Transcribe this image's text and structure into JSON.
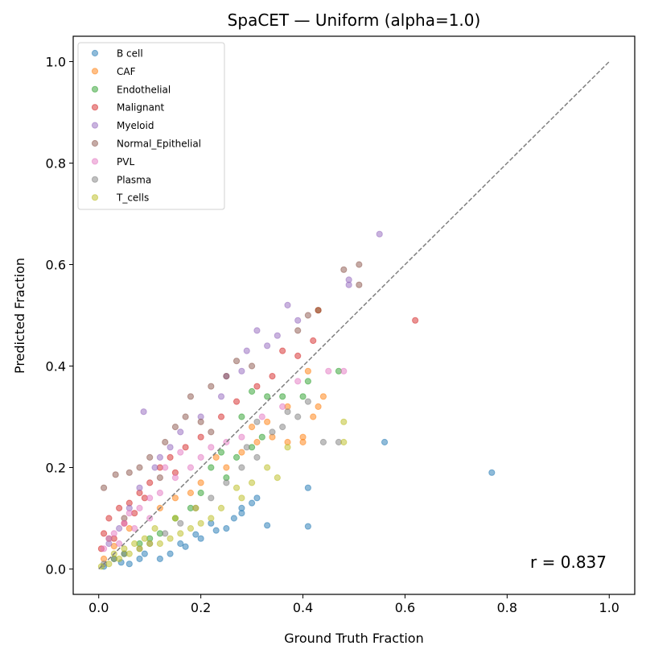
{
  "chart_data": {
    "type": "scatter",
    "title": "SpaCET — Uniform (alpha=1.0)",
    "xlabel": "Ground Truth Fraction",
    "ylabel": "Predicted Fraction",
    "xlim": [
      -0.05,
      1.05
    ],
    "ylim": [
      -0.05,
      1.05
    ],
    "xticks": [
      "0.0",
      "0.2",
      "0.4",
      "0.6",
      "0.8",
      "1.0"
    ],
    "yticks": [
      "0.0",
      "0.2",
      "0.4",
      "0.6",
      "0.8",
      "1.0"
    ],
    "grid": false,
    "legend_position": "top-left",
    "marker_alpha": 0.5,
    "reference_line": {
      "style": "dashed",
      "color": "#808080",
      "from": [
        0,
        0
      ],
      "to": [
        1,
        1
      ]
    },
    "annotation": "r = 0.837",
    "series": [
      {
        "name": "B cell",
        "color": "#1f77b4",
        "points": [
          [
            0.77,
            0.19
          ],
          [
            0.41,
            0.16
          ],
          [
            0.41,
            0.084
          ],
          [
            0.33,
            0.086
          ],
          [
            0.31,
            0.14
          ],
          [
            0.23,
            0.076
          ],
          [
            0.12,
            0.02
          ],
          [
            0.17,
            0.044
          ],
          [
            0.28,
            0.12
          ],
          [
            0.56,
            0.25
          ],
          [
            0.265,
            0.1
          ],
          [
            0.2,
            0.06
          ],
          [
            0.09,
            0.03
          ],
          [
            0.044,
            0.013
          ],
          [
            0.28,
            0.11
          ],
          [
            0.22,
            0.09
          ],
          [
            0.19,
            0.068
          ],
          [
            0.14,
            0.03
          ],
          [
            0.08,
            0.02
          ],
          [
            0.01,
            0.005
          ],
          [
            0.25,
            0.08
          ],
          [
            0.16,
            0.05
          ],
          [
            0.06,
            0.01
          ],
          [
            0.3,
            0.13
          ]
        ]
      },
      {
        "name": "CAF",
        "color": "#ff7f0e",
        "points": [
          [
            0.44,
            0.34
          ],
          [
            0.43,
            0.32
          ],
          [
            0.42,
            0.3
          ],
          [
            0.4,
            0.26
          ],
          [
            0.4,
            0.25
          ],
          [
            0.37,
            0.25
          ],
          [
            0.34,
            0.26
          ],
          [
            0.31,
            0.25
          ],
          [
            0.33,
            0.29
          ],
          [
            0.41,
            0.39
          ],
          [
            0.37,
            0.32
          ],
          [
            0.28,
            0.23
          ],
          [
            0.25,
            0.2
          ],
          [
            0.2,
            0.17
          ],
          [
            0.15,
            0.14
          ],
          [
            0.12,
            0.12
          ],
          [
            0.06,
            0.08
          ],
          [
            0.03,
            0.045
          ],
          [
            0.01,
            0.02
          ],
          [
            0.3,
            0.28
          ],
          [
            0.23,
            0.22
          ],
          [
            0.18,
            0.15
          ]
        ]
      },
      {
        "name": "Endothelial",
        "color": "#2ca02c",
        "points": [
          [
            0.47,
            0.39
          ],
          [
            0.41,
            0.37
          ],
          [
            0.43,
            0.51
          ],
          [
            0.4,
            0.34
          ],
          [
            0.36,
            0.34
          ],
          [
            0.33,
            0.34
          ],
          [
            0.3,
            0.35
          ],
          [
            0.28,
            0.3
          ],
          [
            0.32,
            0.26
          ],
          [
            0.27,
            0.22
          ],
          [
            0.25,
            0.18
          ],
          [
            0.22,
            0.2
          ],
          [
            0.2,
            0.15
          ],
          [
            0.18,
            0.12
          ],
          [
            0.15,
            0.1
          ],
          [
            0.12,
            0.07
          ],
          [
            0.1,
            0.06
          ],
          [
            0.08,
            0.05
          ],
          [
            0.05,
            0.03
          ],
          [
            0.03,
            0.02
          ],
          [
            0.3,
            0.24
          ],
          [
            0.24,
            0.23
          ]
        ]
      },
      {
        "name": "Malignant",
        "color": "#d62728",
        "points": [
          [
            0.62,
            0.49
          ],
          [
            0.43,
            0.51
          ],
          [
            0.42,
            0.45
          ],
          [
            0.39,
            0.42
          ],
          [
            0.36,
            0.43
          ],
          [
            0.34,
            0.38
          ],
          [
            0.31,
            0.36
          ],
          [
            0.27,
            0.33
          ],
          [
            0.24,
            0.3
          ],
          [
            0.2,
            0.26
          ],
          [
            0.17,
            0.24
          ],
          [
            0.14,
            0.22
          ],
          [
            0.12,
            0.2
          ],
          [
            0.1,
            0.17
          ],
          [
            0.08,
            0.15
          ],
          [
            0.06,
            0.13
          ],
          [
            0.04,
            0.12
          ],
          [
            0.02,
            0.1
          ],
          [
            0.01,
            0.07
          ],
          [
            0.005,
            0.04
          ],
          [
            0.03,
            0.06
          ],
          [
            0.05,
            0.09
          ],
          [
            0.07,
            0.11
          ],
          [
            0.09,
            0.14
          ],
          [
            0.15,
            0.19
          ]
        ]
      },
      {
        "name": "Myeloid",
        "color": "#9467bd",
        "points": [
          [
            0.55,
            0.66
          ],
          [
            0.49,
            0.57
          ],
          [
            0.49,
            0.56
          ],
          [
            0.37,
            0.52
          ],
          [
            0.39,
            0.49
          ],
          [
            0.31,
            0.47
          ],
          [
            0.35,
            0.46
          ],
          [
            0.33,
            0.44
          ],
          [
            0.29,
            0.43
          ],
          [
            0.25,
            0.38
          ],
          [
            0.088,
            0.31
          ],
          [
            0.24,
            0.34
          ],
          [
            0.2,
            0.3
          ],
          [
            0.16,
            0.27
          ],
          [
            0.14,
            0.24
          ],
          [
            0.11,
            0.2
          ],
          [
            0.08,
            0.16
          ],
          [
            0.06,
            0.12
          ],
          [
            0.04,
            0.08
          ],
          [
            0.02,
            0.05
          ],
          [
            0.12,
            0.22
          ],
          [
            0.28,
            0.39
          ]
        ]
      },
      {
        "name": "Normal_Epithelial",
        "color": "#8c564b",
        "points": [
          [
            0.51,
            0.6
          ],
          [
            0.48,
            0.59
          ],
          [
            0.51,
            0.56
          ],
          [
            0.41,
            0.5
          ],
          [
            0.39,
            0.47
          ],
          [
            0.27,
            0.41
          ],
          [
            0.25,
            0.38
          ],
          [
            0.3,
            0.4
          ],
          [
            0.22,
            0.36
          ],
          [
            0.18,
            0.34
          ],
          [
            0.17,
            0.3
          ],
          [
            0.15,
            0.28
          ],
          [
            0.13,
            0.25
          ],
          [
            0.1,
            0.22
          ],
          [
            0.06,
            0.19
          ],
          [
            0.033,
            0.186
          ],
          [
            0.01,
            0.16
          ],
          [
            0.08,
            0.2
          ],
          [
            0.12,
            0.18
          ],
          [
            0.2,
            0.29
          ],
          [
            0.22,
            0.27
          ],
          [
            0.05,
            0.1
          ],
          [
            0.02,
            0.06
          ]
        ]
      },
      {
        "name": "PVL",
        "color": "#e377c2",
        "points": [
          [
            0.48,
            0.39
          ],
          [
            0.45,
            0.39
          ],
          [
            0.39,
            0.37
          ],
          [
            0.36,
            0.32
          ],
          [
            0.32,
            0.3
          ],
          [
            0.28,
            0.26
          ],
          [
            0.25,
            0.25
          ],
          [
            0.22,
            0.24
          ],
          [
            0.2,
            0.22
          ],
          [
            0.18,
            0.2
          ],
          [
            0.15,
            0.18
          ],
          [
            0.12,
            0.15
          ],
          [
            0.1,
            0.14
          ],
          [
            0.08,
            0.12
          ],
          [
            0.06,
            0.11
          ],
          [
            0.05,
            0.09
          ],
          [
            0.03,
            0.07
          ],
          [
            0.02,
            0.06
          ],
          [
            0.01,
            0.04
          ],
          [
            0.04,
            0.05
          ],
          [
            0.07,
            0.08
          ],
          [
            0.13,
            0.2
          ],
          [
            0.16,
            0.23
          ],
          [
            0.1,
            0.1
          ]
        ]
      },
      {
        "name": "Plasma",
        "color": "#7f7f7f",
        "points": [
          [
            0.47,
            0.25
          ],
          [
            0.44,
            0.25
          ],
          [
            0.41,
            0.33
          ],
          [
            0.39,
            0.3
          ],
          [
            0.37,
            0.31
          ],
          [
            0.36,
            0.28
          ],
          [
            0.34,
            0.27
          ],
          [
            0.31,
            0.22
          ],
          [
            0.28,
            0.2
          ],
          [
            0.25,
            0.17
          ],
          [
            0.22,
            0.14
          ],
          [
            0.19,
            0.12
          ],
          [
            0.16,
            0.09
          ],
          [
            0.13,
            0.07
          ],
          [
            0.1,
            0.05
          ],
          [
            0.08,
            0.04
          ],
          [
            0.05,
            0.03
          ],
          [
            0.03,
            0.02
          ],
          [
            0.01,
            0.01
          ],
          [
            0.31,
            0.29
          ],
          [
            0.29,
            0.24
          ]
        ]
      },
      {
        "name": "T_cells",
        "color": "#bcbd22",
        "points": [
          [
            0.48,
            0.29
          ],
          [
            0.48,
            0.25
          ],
          [
            0.37,
            0.24
          ],
          [
            0.33,
            0.2
          ],
          [
            0.35,
            0.18
          ],
          [
            0.3,
            0.17
          ],
          [
            0.27,
            0.16
          ],
          [
            0.28,
            0.14
          ],
          [
            0.24,
            0.12
          ],
          [
            0.22,
            0.1
          ],
          [
            0.2,
            0.09
          ],
          [
            0.18,
            0.08
          ],
          [
            0.16,
            0.07
          ],
          [
            0.14,
            0.06
          ],
          [
            0.12,
            0.05
          ],
          [
            0.1,
            0.05
          ],
          [
            0.08,
            0.04
          ],
          [
            0.06,
            0.03
          ],
          [
            0.04,
            0.02
          ],
          [
            0.02,
            0.01
          ],
          [
            0.005,
            0.005
          ],
          [
            0.15,
            0.1
          ],
          [
            0.11,
            0.08
          ],
          [
            0.09,
            0.06
          ],
          [
            0.19,
            0.12
          ],
          [
            0.07,
            0.05
          ],
          [
            0.05,
            0.04
          ],
          [
            0.03,
            0.03
          ]
        ]
      }
    ]
  }
}
